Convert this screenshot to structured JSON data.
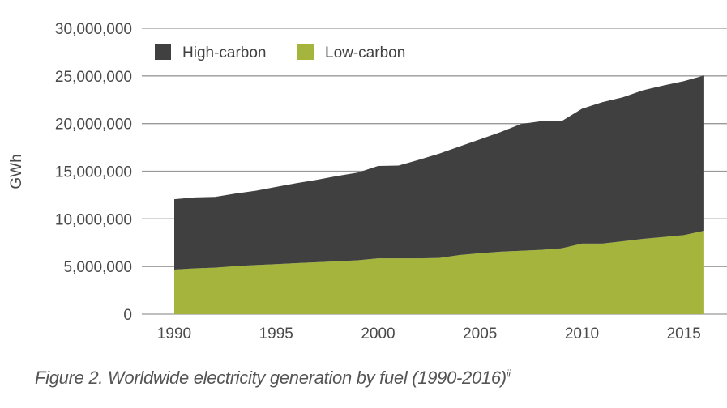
{
  "chart_data": {
    "type": "area",
    "stacked": true,
    "title": "",
    "xlabel": "",
    "ylabel": "GWh",
    "ylim": [
      0,
      30000000
    ],
    "yticks": [
      0,
      5000000,
      10000000,
      15000000,
      20000000,
      25000000,
      30000000
    ],
    "ytick_labels": [
      "0",
      "5,000,000",
      "10,000,000",
      "15,000,000",
      "20,000,000",
      "25,000,000",
      "30,000,000"
    ],
    "xlim": [
      1990,
      2016
    ],
    "xticks": [
      1990,
      1995,
      2000,
      2005,
      2010,
      2015
    ],
    "xtick_labels": [
      "1990",
      "1995",
      "2000",
      "2005",
      "2010",
      "2015"
    ],
    "grid": "horizontal",
    "legend_position": "top-left",
    "x": [
      1990,
      1991,
      1992,
      1993,
      1994,
      1995,
      1996,
      1997,
      1998,
      1999,
      2000,
      2001,
      2002,
      2003,
      2004,
      2005,
      2006,
      2007,
      2008,
      2009,
      2010,
      2011,
      2012,
      2013,
      2014,
      2015,
      2016
    ],
    "series": [
      {
        "name": "Low-carbon",
        "color": "#a5b43c",
        "values": [
          4670000,
          4800000,
          4880000,
          5050000,
          5150000,
          5250000,
          5350000,
          5450000,
          5550000,
          5650000,
          5850000,
          5850000,
          5850000,
          5900000,
          6200000,
          6400000,
          6550000,
          6650000,
          6750000,
          6900000,
          7400000,
          7400000,
          7650000,
          7900000,
          8100000,
          8300000,
          8750000
        ]
      },
      {
        "name": "High-carbon",
        "color": "#404040",
        "values": [
          7390000,
          7450000,
          7420000,
          7600000,
          7800000,
          8100000,
          8400000,
          8650000,
          8950000,
          9200000,
          9700000,
          9750000,
          10350000,
          10950000,
          11400000,
          11950000,
          12550000,
          13300000,
          13500000,
          13350000,
          14150000,
          14850000,
          15100000,
          15600000,
          15900000,
          16150000,
          16300000
        ]
      }
    ],
    "legend": [
      {
        "label": "High-carbon",
        "color": "#404040"
      },
      {
        "label": "Low-carbon",
        "color": "#a5b43c"
      }
    ]
  },
  "caption": {
    "text": "Figure 2. Worldwide electricity generation by fuel (1990-2016)",
    "footnote_marker": "ii"
  },
  "colors": {
    "gridline": "#999999",
    "text": "#4a4a4a"
  }
}
